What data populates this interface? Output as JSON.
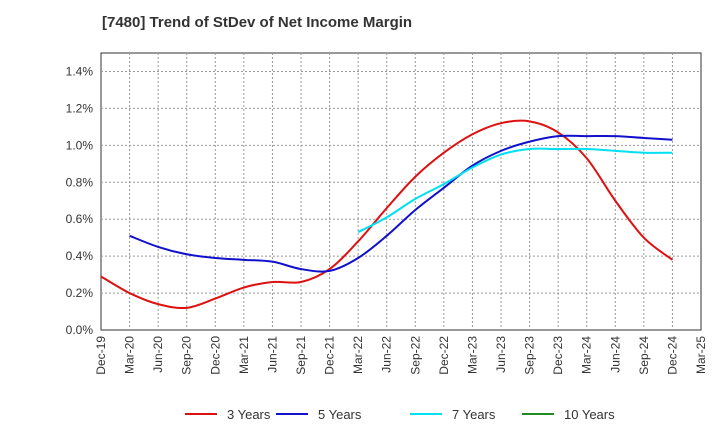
{
  "title": "[7480]  Trend of StDev of Net Income Margin",
  "chart_data": {
    "type": "line",
    "title": "[7480]  Trend of StDev of Net Income Margin",
    "xlabel": "",
    "ylabel": "",
    "x": [
      "Dec-19",
      "Mar-20",
      "Jun-20",
      "Sep-20",
      "Dec-20",
      "Mar-21",
      "Jun-21",
      "Sep-21",
      "Dec-21",
      "Mar-22",
      "Jun-22",
      "Sep-22",
      "Dec-22",
      "Mar-23",
      "Jun-23",
      "Sep-23",
      "Dec-23",
      "Mar-24",
      "Jun-24",
      "Sep-24",
      "Dec-24",
      "Mar-25"
    ],
    "ylim": [
      0,
      1.5
    ],
    "yticks": [
      "0.0%",
      "0.2%",
      "0.4%",
      "0.6%",
      "0.8%",
      "1.0%",
      "1.2%",
      "1.4%"
    ],
    "ytick_values": [
      0,
      0.2,
      0.4,
      0.6,
      0.8,
      1.0,
      1.2,
      1.4
    ],
    "grid": true,
    "legend_position": "bottom",
    "series": [
      {
        "name": "3 Years",
        "color": "#dd1111",
        "values": [
          0.29,
          0.2,
          0.14,
          0.12,
          0.17,
          0.23,
          0.26,
          0.26,
          0.33,
          0.48,
          0.66,
          0.83,
          0.96,
          1.06,
          1.12,
          1.13,
          1.07,
          0.93,
          0.7,
          0.5,
          0.38,
          null
        ]
      },
      {
        "name": "5 Years",
        "color": "#1111cc",
        "values": [
          null,
          0.51,
          0.45,
          0.41,
          0.39,
          0.38,
          0.37,
          0.33,
          0.32,
          0.39,
          0.51,
          0.65,
          0.77,
          0.89,
          0.97,
          1.02,
          1.05,
          1.05,
          1.05,
          1.04,
          1.03,
          null
        ]
      },
      {
        "name": "7 Years",
        "color": "#00e0f0",
        "values": [
          null,
          null,
          null,
          null,
          null,
          null,
          null,
          null,
          null,
          0.53,
          0.61,
          0.71,
          0.79,
          0.88,
          0.95,
          0.98,
          0.98,
          0.98,
          0.97,
          0.96,
          0.96,
          null
        ]
      },
      {
        "name": "10 Years",
        "color": "#228b22",
        "values": [
          null,
          null,
          null,
          null,
          null,
          null,
          null,
          null,
          null,
          null,
          null,
          null,
          null,
          null,
          null,
          null,
          null,
          null,
          null,
          null,
          null,
          null
        ]
      }
    ]
  }
}
